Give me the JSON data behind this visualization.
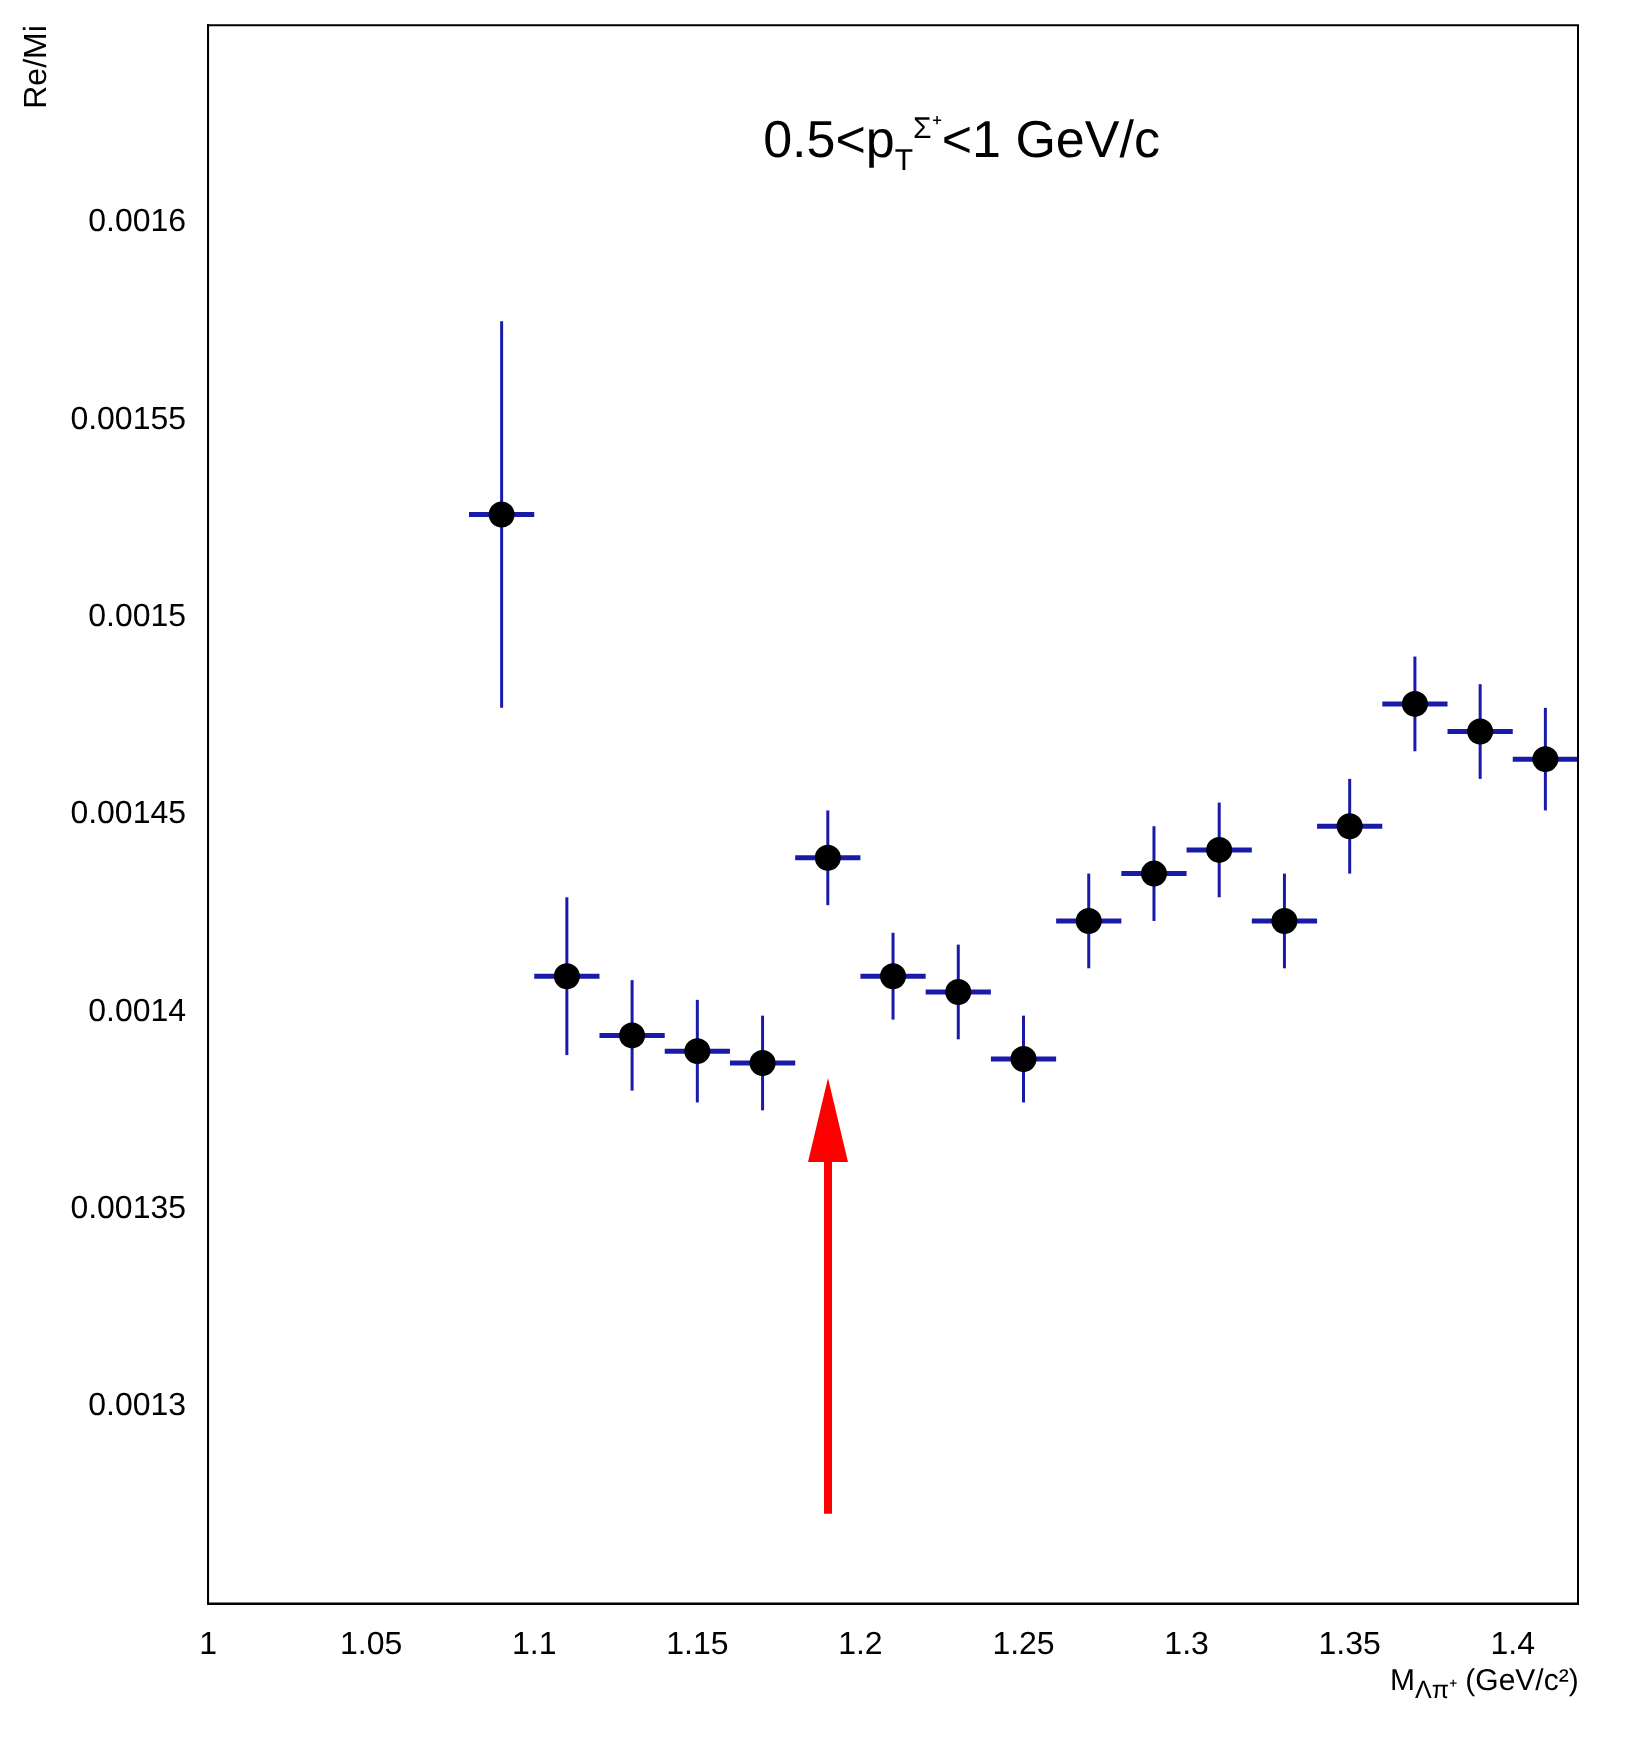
{
  "chart_data": {
    "type": "scatter",
    "title": "0.5<p$_{T}$$^{Σ⁺}$<1 GeV/c",
    "xlabel": "M$_{Λπ⁺}$ (GeV/c²)",
    "ylabel": "Re/Mi",
    "xlim": [
      1,
      1.42
    ],
    "xticks": [
      1,
      1.05,
      1.1,
      1.15,
      1.2,
      1.25,
      1.3,
      1.35,
      1.4
    ],
    "ylim": [
      0.00125,
      0.00165
    ],
    "yticks": [
      0.0013,
      0.00135,
      0.0014,
      0.00145,
      0.0015,
      0.00155,
      0.0016
    ],
    "grid": false,
    "legend": false,
    "marker": "circle",
    "series": [
      {
        "color": "#000000",
        "x": [
          1.09,
          1.11,
          1.13,
          1.15,
          1.17,
          1.19,
          1.21,
          1.23,
          1.25,
          1.27,
          1.29,
          1.31,
          1.33,
          1.35,
          1.37,
          1.39,
          1.41
        ],
        "values": [
          0.001526,
          0.001409,
          0.001394,
          0.00139,
          0.001387,
          0.001439,
          0.001409,
          0.001405,
          0.001388,
          0.001423,
          0.001435,
          0.001441,
          0.001423,
          0.001447,
          0.001478,
          0.001471,
          0.001464
        ],
        "errors": [
          4.9e-05,
          2e-05,
          1.4e-05,
          1.3e-05,
          1.2e-05,
          1.2e-05,
          1.1e-05,
          1.2e-05,
          1.1e-05,
          1.2e-05,
          1.2e-05,
          1.2e-05,
          1.2e-05,
          1.2e-05,
          1.2e-05,
          1.2e-05,
          1.3e-05
        ],
        "xerrors": [
          0.01,
          0.01,
          0.01,
          0.01,
          0.01,
          0.01,
          0.01,
          0.01,
          0.01,
          0.01,
          0.01,
          0.01,
          0.01,
          0.01,
          0.01,
          0.01,
          0.01
        ]
      }
    ]
  }
}
